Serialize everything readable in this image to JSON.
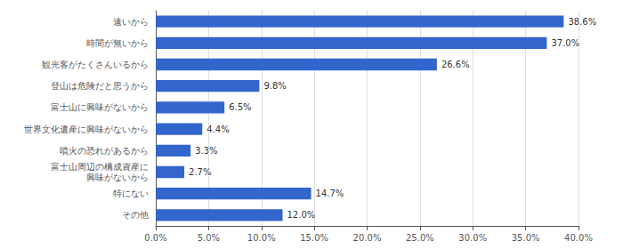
{
  "chart_data": {
    "type": "bar",
    "orientation": "horizontal",
    "categories": [
      "その他",
      "特にない",
      "富士山周辺の構成資産に\n興味がないから",
      "噴火の恐れがあるから",
      "世界文化遺産に興味がないから",
      "富士山に興味がないから",
      "登山は危険だと思うから",
      "観光客がたくさんいるから",
      "時間が無いから",
      "遠いから"
    ],
    "values": [
      12.0,
      14.7,
      2.7,
      3.3,
      4.4,
      6.5,
      9.8,
      26.6,
      37.0,
      38.6
    ],
    "value_labels": [
      "12.0%",
      "14.7%",
      "2.7%",
      "3.3%",
      "4.4%",
      "6.5%",
      "9.8%",
      "26.6%",
      "37.0%",
      "38.6%"
    ],
    "data_labels": true,
    "color": "#3366CC",
    "xlim": [
      0,
      40
    ],
    "xticks": [
      {
        "value": 0,
        "label": "0.0%"
      },
      {
        "value": 5,
        "label": "5.0%"
      },
      {
        "value": 10,
        "label": "10.0%"
      },
      {
        "value": 15,
        "label": "15.0%"
      },
      {
        "value": 20,
        "label": "20.0%"
      },
      {
        "value": 25,
        "label": "25.0%"
      },
      {
        "value": 30,
        "label": "30.0%"
      },
      {
        "value": 35,
        "label": "35.0%"
      },
      {
        "value": 40,
        "label": "40.0%"
      }
    ],
    "grid": true
  }
}
